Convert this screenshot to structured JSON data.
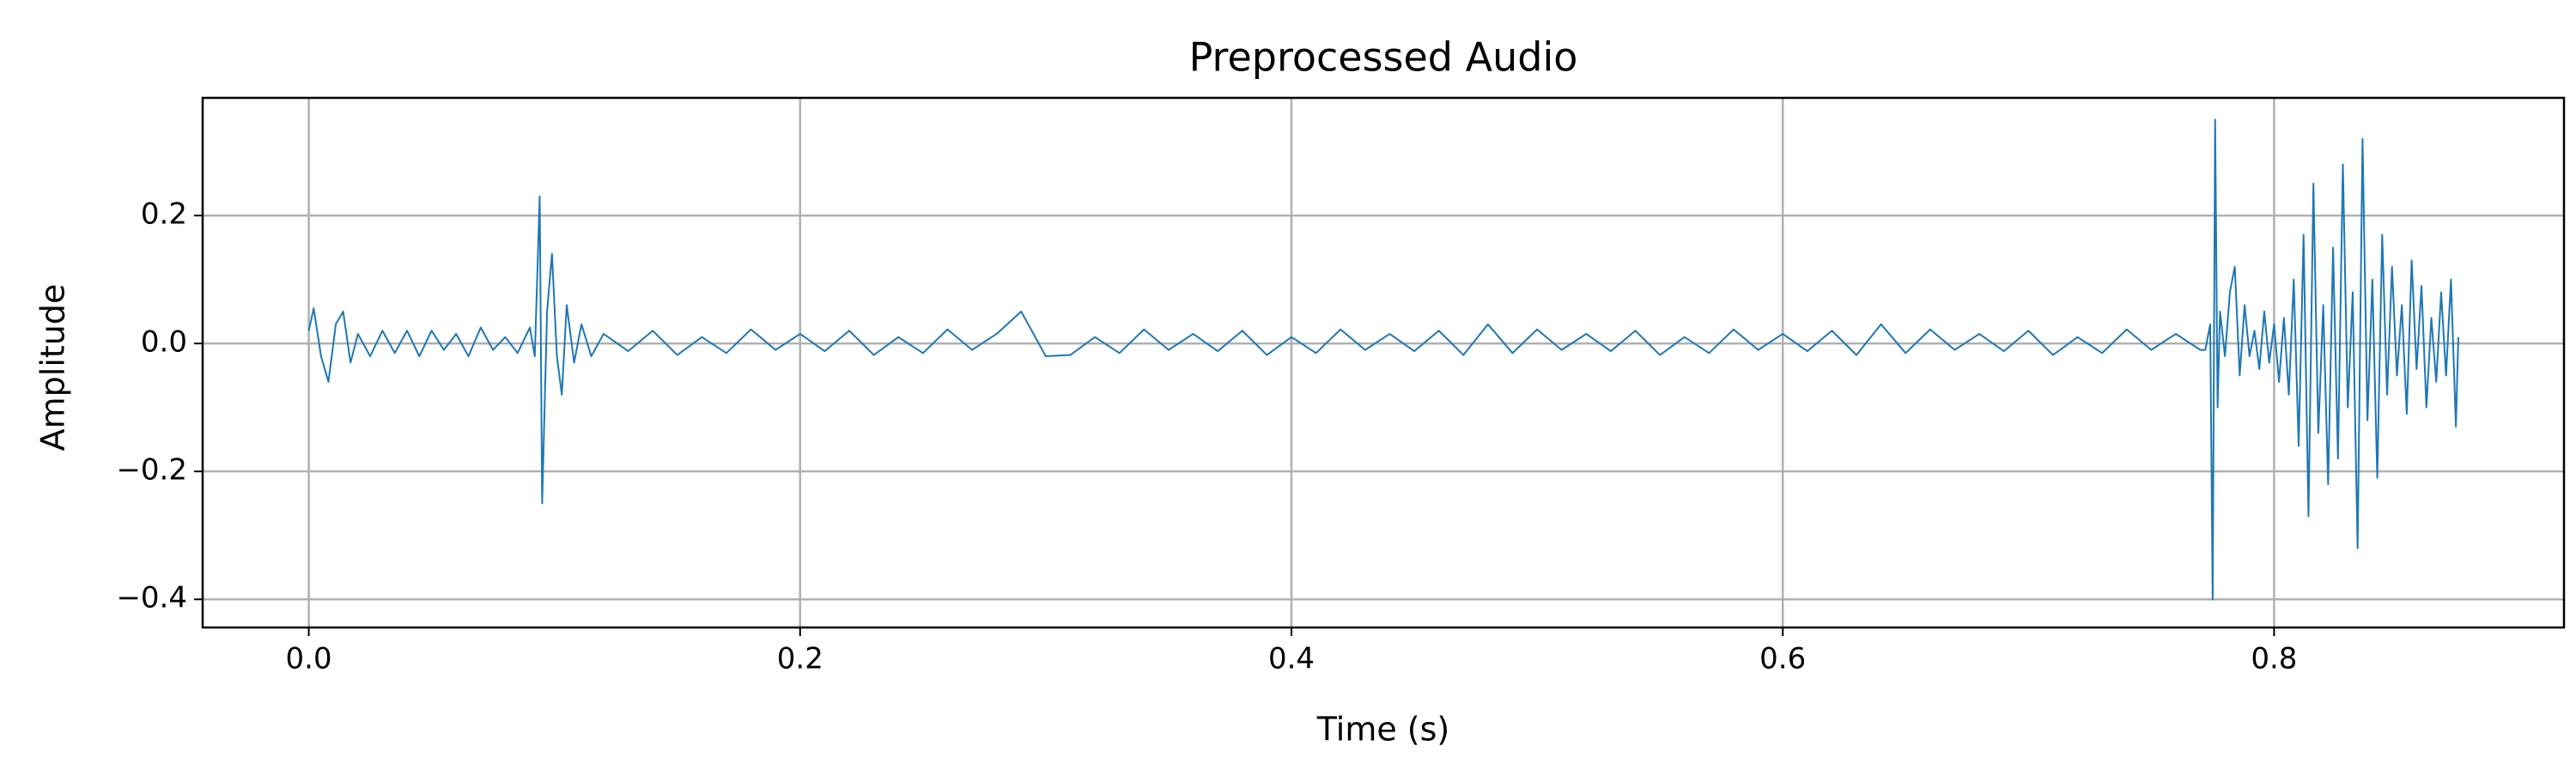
{
  "chart_data": {
    "type": "line",
    "title": "Preprocessed Audio",
    "x_label": "Time (s)",
    "y_label": "Amplitude",
    "grid": true,
    "xlim": [
      -0.0432,
      0.918
    ],
    "ylim": [
      -0.444,
      0.384
    ],
    "xticks": [
      {
        "value": 0,
        "label": "0.0"
      },
      0.2,
      0.4,
      0.6,
      0.8
    ],
    "yticks": [
      {
        "value": -0.4,
        "label": "−0.4"
      },
      {
        "value": -0.2,
        "label": "−0.2"
      },
      {
        "value": 0,
        "label": "0.0"
      },
      0.2
    ],
    "series": [
      {
        "color": "#1f77b4",
        "x": [
          0,
          0.002,
          0.005,
          0.008,
          0.011,
          0.014,
          0.017,
          0.02,
          0.025,
          0.03,
          0.035,
          0.04,
          0.045,
          0.05,
          0.055,
          0.06,
          0.065,
          0.07,
          0.075,
          0.08,
          0.085,
          0.09,
          0.092,
          0.094,
          0.095,
          0.097,
          0.099,
          0.101,
          0.103,
          0.105,
          0.108,
          0.111,
          0.115,
          0.12,
          0.13,
          0.14,
          0.15,
          0.16,
          0.17,
          0.18,
          0.19,
          0.2,
          0.21,
          0.22,
          0.23,
          0.24,
          0.25,
          0.26,
          0.27,
          0.28,
          0.29,
          0.3,
          0.31,
          0.32,
          0.33,
          0.34,
          0.35,
          0.36,
          0.37,
          0.38,
          0.39,
          0.4,
          0.41,
          0.42,
          0.43,
          0.44,
          0.45,
          0.46,
          0.47,
          0.48,
          0.49,
          0.5,
          0.51,
          0.52,
          0.53,
          0.54,
          0.55,
          0.56,
          0.57,
          0.58,
          0.59,
          0.6,
          0.61,
          0.62,
          0.63,
          0.64,
          0.65,
          0.66,
          0.67,
          0.68,
          0.69,
          0.7,
          0.71,
          0.72,
          0.73,
          0.74,
          0.75,
          0.76,
          0.77,
          0.772,
          0.774,
          0.775,
          0.776,
          0.777,
          0.778,
          0.78,
          0.782,
          0.784,
          0.786,
          0.788,
          0.79,
          0.792,
          0.794,
          0.796,
          0.798,
          0.8,
          0.802,
          0.804,
          0.806,
          0.808,
          0.81,
          0.812,
          0.814,
          0.816,
          0.818,
          0.82,
          0.822,
          0.824,
          0.826,
          0.828,
          0.83,
          0.832,
          0.834,
          0.836,
          0.838,
          0.84,
          0.842,
          0.844,
          0.846,
          0.848,
          0.85,
          0.852,
          0.854,
          0.856,
          0.858,
          0.86,
          0.862,
          0.864,
          0.866,
          0.868,
          0.87,
          0.872,
          0.874,
          0.875
        ],
        "values": [
          0.02,
          0.055,
          -0.02,
          -0.06,
          0.03,
          0.05,
          -0.03,
          0.015,
          -0.02,
          0.02,
          -0.015,
          0.02,
          -0.02,
          0.02,
          -0.01,
          0.015,
          -0.02,
          0.025,
          -0.01,
          0.01,
          -0.015,
          0.025,
          -0.02,
          0.23,
          -0.25,
          0.05,
          0.14,
          -0.02,
          -0.08,
          0.06,
          -0.03,
          0.03,
          -0.02,
          0.015,
          -0.012,
          0.02,
          -0.018,
          0.01,
          -0.015,
          0.022,
          -0.01,
          0.015,
          -0.012,
          0.02,
          -0.018,
          0.01,
          -0.015,
          0.022,
          -0.01,
          0.015,
          0.05,
          -0.02,
          -0.018,
          0.01,
          -0.015,
          0.022,
          -0.01,
          0.015,
          -0.012,
          0.02,
          -0.018,
          0.01,
          -0.015,
          0.022,
          -0.01,
          0.015,
          -0.012,
          0.02,
          -0.018,
          0.03,
          -0.015,
          0.022,
          -0.01,
          0.015,
          -0.012,
          0.02,
          -0.018,
          0.01,
          -0.015,
          0.022,
          -0.01,
          0.015,
          -0.012,
          0.02,
          -0.018,
          0.03,
          -0.015,
          0.022,
          -0.01,
          0.015,
          -0.012,
          0.02,
          -0.018,
          0.01,
          -0.015,
          0.022,
          -0.01,
          0.015,
          -0.01,
          -0.01,
          0.03,
          -0.4,
          0.35,
          -0.1,
          0.05,
          -0.02,
          0.08,
          0.12,
          -0.05,
          0.06,
          -0.02,
          0.02,
          -0.04,
          0.05,
          -0.03,
          0.03,
          -0.06,
          0.04,
          -0.08,
          0.1,
          -0.16,
          0.17,
          -0.27,
          0.25,
          -0.14,
          0.06,
          -0.22,
          0.15,
          -0.18,
          0.28,
          -0.1,
          0.08,
          -0.32,
          0.32,
          -0.12,
          0.1,
          -0.21,
          0.17,
          -0.08,
          0.12,
          -0.05,
          0.06,
          -0.11,
          0.13,
          -0.04,
          0.09,
          -0.1,
          0.04,
          -0.06,
          0.08,
          -0.05,
          0.1,
          -0.13,
          0.01
        ]
      }
    ]
  }
}
